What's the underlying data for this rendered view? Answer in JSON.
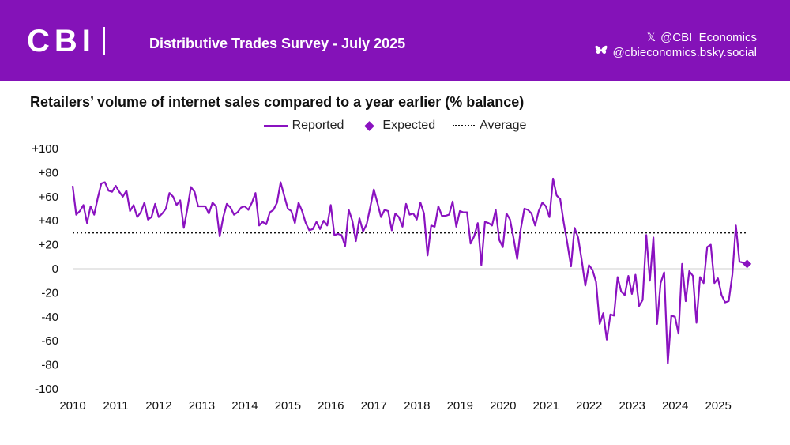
{
  "header": {
    "logo_text": "CBI",
    "survey_title": "Distributive Trades Survey - July 2025",
    "social_x": "@CBI_Economics",
    "social_bsky": "@cbieconomics.bsky.social",
    "background_color": "#8412b8"
  },
  "icons": {
    "x_icon": "x-logo-icon",
    "bsky_icon": "butterfly-icon"
  },
  "chart_data": {
    "type": "line",
    "title": "Retailers’ volume of internet sales compared to a year earlier (% balance)",
    "legend": [
      "Reported",
      "Expected",
      "Average"
    ],
    "legend_position": "top-center",
    "ylim": [
      -100,
      100
    ],
    "yticks": [
      100,
      80,
      60,
      40,
      20,
      0,
      -20,
      -40,
      -60,
      -80,
      -100
    ],
    "ytick_labels": [
      "+100",
      "+80",
      "+60",
      "+40",
      "+20",
      "0",
      "-20",
      "-40",
      "-60",
      "-80",
      "-100"
    ],
    "xlim": [
      2010,
      2025.75
    ],
    "xtick_labels": [
      "2010",
      "2011",
      "2012",
      "2013",
      "2014",
      "2015",
      "2016",
      "2017",
      "2018",
      "2019",
      "2020",
      "2021",
      "2022",
      "2023",
      "2024",
      "2025"
    ],
    "grid": false,
    "series": [
      {
        "name": "Reported",
        "color": "#8a12c0",
        "start_year": 2010,
        "step": 0.0833,
        "values": [
          69,
          45,
          48,
          53,
          38,
          52,
          45,
          59,
          71,
          72,
          65,
          64,
          69,
          64,
          60,
          65,
          48,
          53,
          43,
          47,
          55,
          41,
          43,
          54,
          43,
          46,
          50,
          63,
          60,
          53,
          57,
          34,
          50,
          68,
          64,
          52,
          52,
          52,
          46,
          55,
          52,
          27,
          43,
          54,
          51,
          45,
          47,
          51,
          52,
          49,
          55,
          63,
          36,
          39,
          37,
          47,
          49,
          55,
          72,
          61,
          50,
          48,
          38,
          55,
          48,
          38,
          32,
          33,
          39,
          33,
          40,
          36,
          53,
          28,
          29,
          28,
          19,
          49,
          40,
          23,
          42,
          31,
          37,
          51,
          66,
          55,
          43,
          49,
          48,
          32,
          46,
          43,
          35,
          54,
          45,
          46,
          41,
          55,
          46,
          11,
          36,
          35,
          52,
          44,
          44,
          45,
          56,
          35,
          48,
          47,
          47,
          21,
          27,
          38,
          3,
          39,
          38,
          36,
          49,
          24,
          18,
          46,
          41,
          25,
          8,
          33,
          50,
          49,
          46,
          36,
          48,
          55,
          52,
          43,
          75,
          61,
          58,
          38,
          21,
          2,
          34,
          26,
          7,
          -14,
          3,
          -1,
          -11,
          -46,
          -37,
          -59,
          -38,
          -39,
          -7,
          -19,
          -22,
          -6,
          -21,
          -5,
          -31,
          -26,
          28,
          -10,
          26,
          -46,
          -12,
          -3,
          -79,
          -39,
          -40,
          -54,
          4,
          -27,
          -2,
          -6,
          -45,
          -7,
          -12,
          18,
          20,
          -12,
          -8,
          -22,
          -28,
          -27,
          -5,
          36,
          6,
          5,
          3
        ]
      },
      {
        "name": "Expected",
        "color": "#8a12c0",
        "x": 2025.67,
        "value": 4
      },
      {
        "name": "Average",
        "color": "#111111",
        "value": 30
      }
    ]
  }
}
